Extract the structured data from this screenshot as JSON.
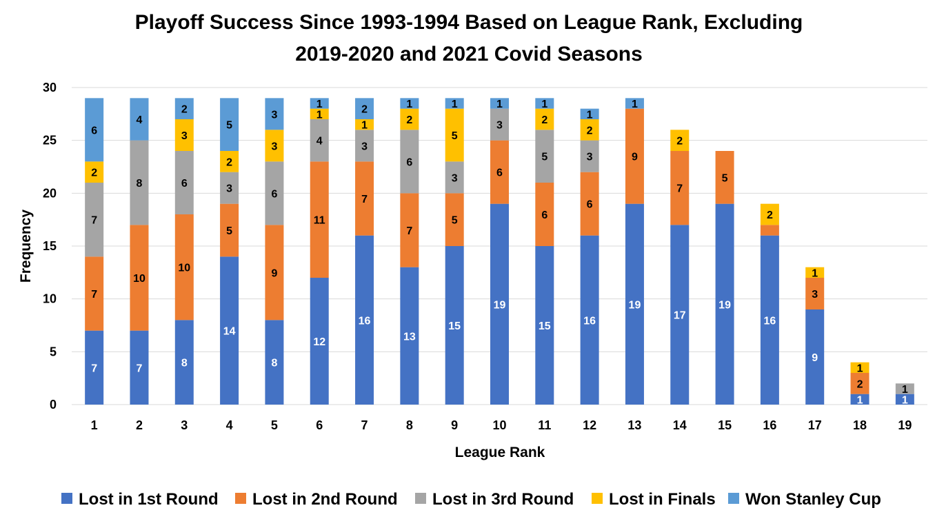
{
  "chart_data": {
    "type": "bar",
    "stacked": true,
    "title_lines": [
      "Playoff Success Since 1993-1994 Based on League Rank, Excluding",
      "2019-2020 and 2021 Covid Seasons"
    ],
    "xlabel": "League Rank",
    "ylabel": "Frequency",
    "ylim": [
      0,
      30
    ],
    "yticks": [
      0,
      5,
      10,
      15,
      20,
      25,
      30
    ],
    "grid": true,
    "legend_position": "bottom",
    "categories": [
      "1",
      "2",
      "3",
      "4",
      "5",
      "6",
      "7",
      "8",
      "9",
      "10",
      "11",
      "12",
      "13",
      "14",
      "15",
      "16",
      "17",
      "18",
      "19"
    ],
    "series": [
      {
        "name": "Lost in 1st Round",
        "color": "#4472c4",
        "label_color": "#ffffff",
        "values": [
          7,
          7,
          8,
          14,
          8,
          12,
          16,
          13,
          15,
          19,
          15,
          16,
          19,
          17,
          19,
          16,
          9,
          1,
          1
        ]
      },
      {
        "name": "Lost in 2nd Round",
        "color": "#ed7d31",
        "label_color": "#000000",
        "values": [
          7,
          10,
          10,
          5,
          9,
          11,
          7,
          7,
          5,
          6,
          6,
          6,
          9,
          7,
          5,
          1,
          3,
          2,
          0
        ]
      },
      {
        "name": "Lost in 3rd Round",
        "color": "#a5a5a5",
        "label_color": "#000000",
        "values": [
          7,
          8,
          6,
          3,
          6,
          4,
          3,
          6,
          3,
          3,
          5,
          3,
          0,
          0,
          0,
          0,
          0,
          0,
          1
        ]
      },
      {
        "name": "Lost in Finals",
        "color": "#ffc000",
        "label_color": "#000000",
        "values": [
          2,
          0,
          3,
          2,
          3,
          1,
          1,
          2,
          5,
          0,
          2,
          2,
          0,
          2,
          0,
          2,
          1,
          1,
          0
        ]
      },
      {
        "name": "Won Stanley Cup",
        "color": "#5b9bd5",
        "label_color": "#000000",
        "values": [
          6,
          4,
          2,
          5,
          3,
          1,
          2,
          1,
          1,
          1,
          1,
          1,
          1,
          0,
          0,
          0,
          0,
          0,
          0
        ]
      }
    ],
    "labels_shown": [
      [
        true,
        true,
        true,
        true,
        true,
        true,
        true,
        true,
        true,
        true,
        true,
        true,
        true,
        true,
        true,
        true,
        true,
        true,
        true
      ],
      [
        true,
        true,
        true,
        true,
        true,
        true,
        true,
        true,
        true,
        true,
        true,
        true,
        true,
        true,
        true,
        false,
        true,
        true,
        false
      ],
      [
        true,
        true,
        true,
        true,
        true,
        true,
        true,
        true,
        true,
        true,
        true,
        true,
        false,
        false,
        false,
        false,
        false,
        false,
        true
      ],
      [
        true,
        false,
        true,
        true,
        true,
        true,
        true,
        true,
        true,
        false,
        true,
        true,
        false,
        true,
        false,
        true,
        true,
        true,
        false
      ],
      [
        true,
        true,
        true,
        true,
        true,
        true,
        true,
        true,
        true,
        true,
        true,
        true,
        true,
        false,
        false,
        false,
        false,
        false,
        false
      ]
    ]
  }
}
